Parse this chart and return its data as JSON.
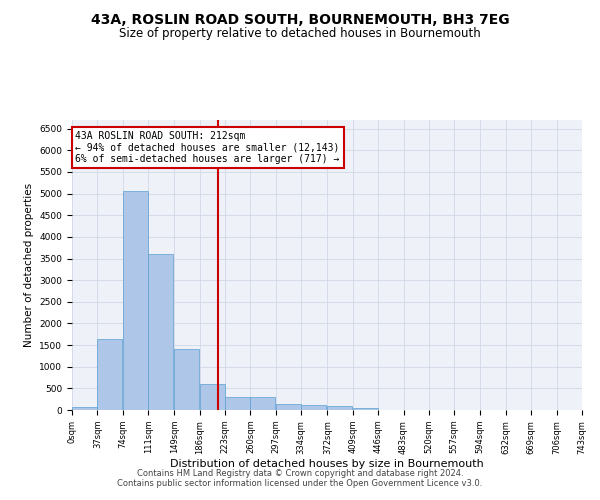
{
  "title": "43A, ROSLIN ROAD SOUTH, BOURNEMOUTH, BH3 7EG",
  "subtitle": "Size of property relative to detached houses in Bournemouth",
  "xlabel": "Distribution of detached houses by size in Bournemouth",
  "ylabel": "Number of detached properties",
  "bar_values": [
    70,
    1650,
    5050,
    3600,
    1400,
    610,
    300,
    300,
    150,
    120,
    90,
    50,
    0,
    0,
    0,
    0,
    0,
    0,
    0,
    0
  ],
  "bin_edges": [
    0,
    37,
    74,
    111,
    149,
    186,
    223,
    260,
    297,
    334,
    372,
    409,
    446,
    483,
    520,
    557,
    594,
    632,
    669,
    706,
    743
  ],
  "bin_labels": [
    "0sqm",
    "37sqm",
    "74sqm",
    "111sqm",
    "149sqm",
    "186sqm",
    "223sqm",
    "260sqm",
    "297sqm",
    "334sqm",
    "372sqm",
    "409sqm",
    "446sqm",
    "483sqm",
    "520sqm",
    "557sqm",
    "594sqm",
    "632sqm",
    "669sqm",
    "706sqm",
    "743sqm"
  ],
  "bar_color": "#aec6e8",
  "bar_edgecolor": "#5a9fd4",
  "vline_x": 212,
  "vline_color": "#cc0000",
  "annotation_text": "43A ROSLIN ROAD SOUTH: 212sqm\n← 94% of detached houses are smaller (12,143)\n6% of semi-detached houses are larger (717) →",
  "annotation_box_color": "#cc0000",
  "ylim": [
    0,
    6700
  ],
  "yticks": [
    0,
    500,
    1000,
    1500,
    2000,
    2500,
    3000,
    3500,
    4000,
    4500,
    5000,
    5500,
    6000,
    6500
  ],
  "grid_color": "#d0d8e8",
  "background_color": "#eef2f8",
  "footer_line1": "Contains HM Land Registry data © Crown copyright and database right 2024.",
  "footer_line2": "Contains public sector information licensed under the Open Government Licence v3.0.",
  "title_fontsize": 10,
  "subtitle_fontsize": 8.5,
  "annotation_fontsize": 7,
  "footer_fontsize": 6,
  "ylabel_fontsize": 7.5,
  "xlabel_fontsize": 8
}
